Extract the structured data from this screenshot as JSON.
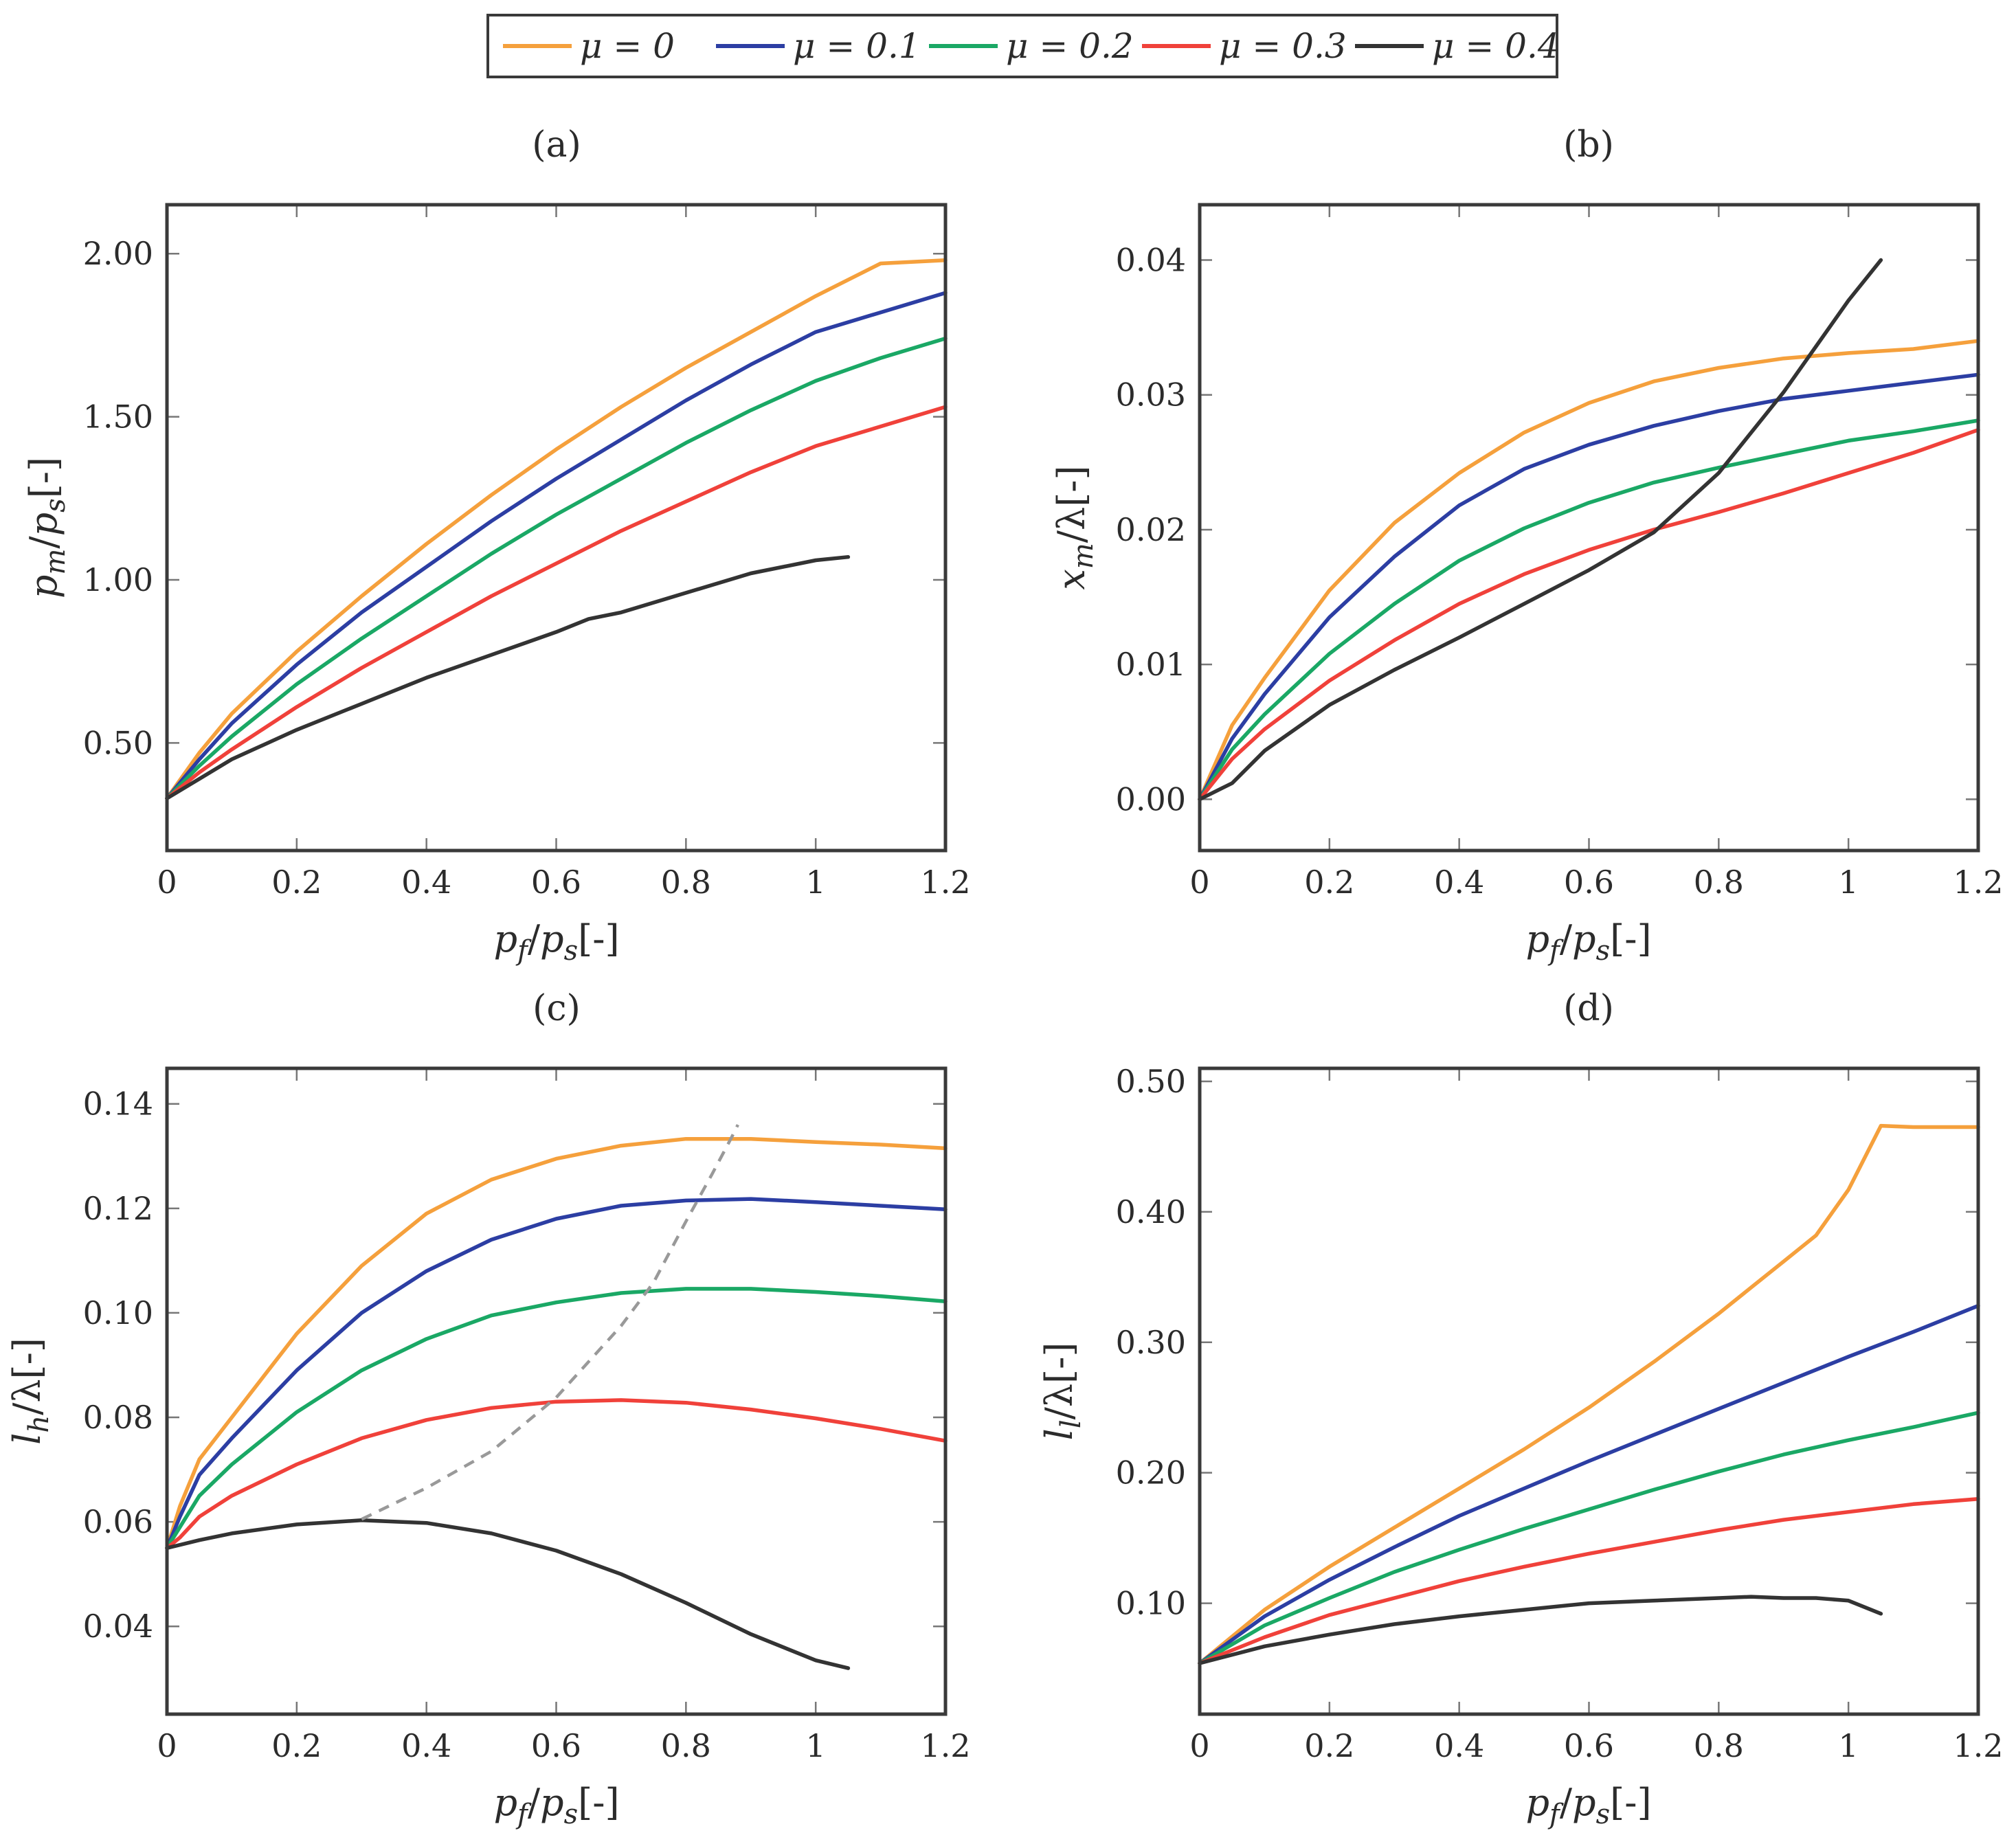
{
  "legend": {
    "entries": [
      {
        "label": "μ = 0",
        "color": "#f5a03c"
      },
      {
        "label": "μ = 0.1",
        "color": "#2c3ea3"
      },
      {
        "label": "μ = 0.2",
        "color": "#1aa865"
      },
      {
        "label": "μ = 0.3",
        "color": "#f0413a"
      },
      {
        "label": "μ = 0.4",
        "color": "#333333"
      }
    ]
  },
  "chart_data": [
    {
      "id": "a",
      "type": "line",
      "title": "(a)",
      "xlabel": "p_f/p_s[-]",
      "ylabel": "p_m/p_s[-]",
      "xlim": [
        0,
        1.2
      ],
      "ylim": [
        0.17,
        2.15
      ],
      "xticks": [
        0,
        0.2,
        0.4,
        0.6,
        0.8,
        1,
        1.2
      ],
      "xtick_labels": [
        "0",
        "0.2",
        "0.4",
        "0.6",
        "0.8",
        "1",
        "1.2"
      ],
      "yticks": [
        0.5,
        1.0,
        1.5,
        2.0
      ],
      "ytick_labels": [
        "0.50",
        "1.00",
        "1.50",
        "2.00"
      ],
      "series": [
        {
          "name": "μ = 0",
          "x": [
            0,
            0.05,
            0.1,
            0.2,
            0.3,
            0.4,
            0.5,
            0.6,
            0.7,
            0.8,
            0.9,
            1.0,
            1.1,
            1.2
          ],
          "y": [
            0.33,
            0.47,
            0.59,
            0.78,
            0.95,
            1.11,
            1.26,
            1.4,
            1.53,
            1.65,
            1.76,
            1.87,
            1.97,
            1.98
          ]
        },
        {
          "name": "μ = 0.1",
          "x": [
            0,
            0.05,
            0.1,
            0.2,
            0.3,
            0.4,
            0.5,
            0.6,
            0.7,
            0.8,
            0.9,
            1.0,
            1.1,
            1.2
          ],
          "y": [
            0.33,
            0.45,
            0.56,
            0.74,
            0.9,
            1.04,
            1.18,
            1.31,
            1.43,
            1.55,
            1.66,
            1.76,
            1.82,
            1.88
          ]
        },
        {
          "name": "μ = 0.2",
          "x": [
            0,
            0.05,
            0.1,
            0.2,
            0.3,
            0.4,
            0.5,
            0.6,
            0.7,
            0.8,
            0.9,
            1.0,
            1.1,
            1.2
          ],
          "y": [
            0.33,
            0.43,
            0.52,
            0.68,
            0.82,
            0.95,
            1.08,
            1.2,
            1.31,
            1.42,
            1.52,
            1.61,
            1.68,
            1.74
          ]
        },
        {
          "name": "μ = 0.3",
          "x": [
            0,
            0.05,
            0.1,
            0.2,
            0.3,
            0.4,
            0.5,
            0.6,
            0.7,
            0.8,
            0.9,
            1.0,
            1.1,
            1.2
          ],
          "y": [
            0.33,
            0.41,
            0.48,
            0.61,
            0.73,
            0.84,
            0.95,
            1.05,
            1.15,
            1.24,
            1.33,
            1.41,
            1.47,
            1.53
          ]
        },
        {
          "name": "μ = 0.4",
          "x": [
            0,
            0.05,
            0.1,
            0.2,
            0.3,
            0.4,
            0.5,
            0.6,
            0.65,
            0.7,
            0.8,
            0.9,
            1.0,
            1.05
          ],
          "y": [
            0.33,
            0.39,
            0.45,
            0.54,
            0.62,
            0.7,
            0.77,
            0.84,
            0.88,
            0.9,
            0.96,
            1.02,
            1.06,
            1.07
          ]
        }
      ]
    },
    {
      "id": "b",
      "type": "line",
      "title": "(b)",
      "xlabel": "p_f/p_s[-]",
      "ylabel": "x_m/λ[-]",
      "xlim": [
        0,
        1.2
      ],
      "ylim": [
        -0.0038,
        0.0441
      ],
      "xticks": [
        0,
        0.2,
        0.4,
        0.6,
        0.8,
        1,
        1.2
      ],
      "xtick_labels": [
        "0",
        "0.2",
        "0.4",
        "0.6",
        "0.8",
        "1",
        "1.2"
      ],
      "yticks": [
        0,
        0.01,
        0.02,
        0.03,
        0.04
      ],
      "ytick_labels": [
        "0.00",
        "0.01",
        "0.02",
        "0.03",
        "0.04"
      ],
      "series": [
        {
          "name": "μ = 0",
          "x": [
            0,
            0.05,
            0.1,
            0.2,
            0.3,
            0.4,
            0.5,
            0.6,
            0.7,
            0.8,
            0.9,
            1.0,
            1.1,
            1.2
          ],
          "y": [
            0,
            0.0055,
            0.009,
            0.0155,
            0.0205,
            0.0242,
            0.0272,
            0.0294,
            0.031,
            0.032,
            0.0327,
            0.0331,
            0.0334,
            0.034
          ]
        },
        {
          "name": "μ = 0.1",
          "x": [
            0,
            0.05,
            0.1,
            0.2,
            0.3,
            0.4,
            0.5,
            0.6,
            0.7,
            0.8,
            0.9,
            1.0,
            1.1,
            1.2
          ],
          "y": [
            0,
            0.0045,
            0.0078,
            0.0135,
            0.018,
            0.0218,
            0.0245,
            0.0263,
            0.0277,
            0.0288,
            0.0297,
            0.0303,
            0.0309,
            0.0315
          ]
        },
        {
          "name": "μ = 0.2",
          "x": [
            0,
            0.05,
            0.1,
            0.2,
            0.3,
            0.4,
            0.5,
            0.6,
            0.7,
            0.8,
            0.9,
            1.0,
            1.1,
            1.2
          ],
          "y": [
            0,
            0.0037,
            0.0063,
            0.0108,
            0.0145,
            0.0177,
            0.0201,
            0.022,
            0.0235,
            0.0246,
            0.0256,
            0.0266,
            0.0273,
            0.0281
          ]
        },
        {
          "name": "μ = 0.3",
          "x": [
            0,
            0.05,
            0.1,
            0.2,
            0.3,
            0.4,
            0.5,
            0.6,
            0.7,
            0.8,
            0.9,
            1.0,
            1.1,
            1.2
          ],
          "y": [
            0,
            0.003,
            0.0052,
            0.0088,
            0.0118,
            0.0145,
            0.0167,
            0.0185,
            0.02,
            0.0213,
            0.0227,
            0.0242,
            0.0257,
            0.0274
          ]
        },
        {
          "name": "μ = 0.4",
          "x": [
            0,
            0.05,
            0.1,
            0.2,
            0.3,
            0.4,
            0.5,
            0.6,
            0.7,
            0.8,
            0.9,
            0.95,
            1.0,
            1.05
          ],
          "y": [
            0,
            0.0012,
            0.0036,
            0.007,
            0.0096,
            0.012,
            0.0145,
            0.017,
            0.0198,
            0.0242,
            0.0302,
            0.0336,
            0.037,
            0.04
          ]
        }
      ]
    },
    {
      "id": "c",
      "type": "line",
      "title": "(c)",
      "xlabel": "p_f/p_s[-]",
      "ylabel": "l_h/λ[-]",
      "xlim": [
        0,
        1.2
      ],
      "ylim": [
        0.0232,
        0.1468
      ],
      "xticks": [
        0,
        0.2,
        0.4,
        0.6,
        0.8,
        1,
        1.2
      ],
      "xtick_labels": [
        "0",
        "0.2",
        "0.4",
        "0.6",
        "0.8",
        "1",
        "1.2"
      ],
      "yticks": [
        0.04,
        0.06,
        0.08,
        0.1,
        0.12,
        0.14
      ],
      "ytick_labels": [
        "0.04",
        "0.06",
        "0.08",
        "0.10",
        "0.12",
        "0.14"
      ],
      "series": [
        {
          "name": "μ = 0",
          "x": [
            0,
            0.02,
            0.05,
            0.1,
            0.2,
            0.3,
            0.4,
            0.5,
            0.6,
            0.7,
            0.8,
            0.9,
            1.0,
            1.1,
            1.2
          ],
          "y": [
            0.055,
            0.063,
            0.072,
            0.08,
            0.096,
            0.109,
            0.119,
            0.1255,
            0.1295,
            0.132,
            0.1333,
            0.1333,
            0.1327,
            0.1322,
            0.1315
          ]
        },
        {
          "name": "μ = 0.1",
          "x": [
            0,
            0.02,
            0.05,
            0.1,
            0.2,
            0.3,
            0.4,
            0.5,
            0.6,
            0.7,
            0.8,
            0.9,
            1.0,
            1.1,
            1.2
          ],
          "y": [
            0.055,
            0.061,
            0.069,
            0.076,
            0.089,
            0.1,
            0.108,
            0.114,
            0.118,
            0.1205,
            0.1215,
            0.1218,
            0.1212,
            0.1205,
            0.1198
          ]
        },
        {
          "name": "μ = 0.2",
          "x": [
            0,
            0.02,
            0.05,
            0.1,
            0.2,
            0.3,
            0.4,
            0.5,
            0.6,
            0.7,
            0.8,
            0.9,
            1.0,
            1.1,
            1.2
          ],
          "y": [
            0.055,
            0.059,
            0.065,
            0.071,
            0.081,
            0.089,
            0.095,
            0.0995,
            0.102,
            0.1038,
            0.1046,
            0.1046,
            0.104,
            0.1032,
            0.1022
          ]
        },
        {
          "name": "μ = 0.3",
          "x": [
            0,
            0.02,
            0.05,
            0.1,
            0.2,
            0.3,
            0.4,
            0.5,
            0.6,
            0.7,
            0.8,
            0.9,
            1.0,
            1.1,
            1.2
          ],
          "y": [
            0.055,
            0.057,
            0.061,
            0.065,
            0.071,
            0.076,
            0.0795,
            0.0818,
            0.083,
            0.0833,
            0.0828,
            0.0815,
            0.0798,
            0.0778,
            0.0755
          ]
        },
        {
          "name": "μ = 0.4",
          "x": [
            0,
            0.05,
            0.1,
            0.2,
            0.3,
            0.4,
            0.5,
            0.6,
            0.7,
            0.8,
            0.9,
            1.0,
            1.05
          ],
          "y": [
            0.055,
            0.0565,
            0.0578,
            0.0595,
            0.0603,
            0.0598,
            0.0578,
            0.0545,
            0.05,
            0.0445,
            0.0385,
            0.0335,
            0.032
          ]
        },
        {
          "name": "boundary",
          "style": "dashed",
          "color": "#999999",
          "x": [
            0.3,
            0.4,
            0.5,
            0.6,
            0.7,
            0.75,
            0.8,
            0.84,
            0.87,
            0.88
          ],
          "y": [
            0.0605,
            0.0665,
            0.0735,
            0.0838,
            0.0975,
            0.1058,
            0.1175,
            0.1265,
            0.1335,
            0.136
          ]
        }
      ]
    },
    {
      "id": "d",
      "type": "line",
      "title": "(d)",
      "xlabel": "p_f/p_s[-]",
      "ylabel": "l_l/λ[-]",
      "xlim": [
        0,
        1.2
      ],
      "ylim": [
        0.015,
        0.51
      ],
      "xticks": [
        0,
        0.2,
        0.4,
        0.6,
        0.8,
        1,
        1.2
      ],
      "xtick_labels": [
        "0",
        "0.2",
        "0.4",
        "0.6",
        "0.8",
        "1",
        "1.2"
      ],
      "yticks": [
        0.1,
        0.2,
        0.3,
        0.4,
        0.5
      ],
      "ytick_labels": [
        "0.10",
        "0.20",
        "0.30",
        "0.40",
        "0.50"
      ],
      "series": [
        {
          "name": "μ = 0",
          "x": [
            0,
            0.1,
            0.2,
            0.3,
            0.4,
            0.5,
            0.6,
            0.7,
            0.8,
            0.85,
            0.9,
            0.95,
            1.0,
            1.05,
            1.1,
            1.2
          ],
          "y": [
            0.054,
            0.095,
            0.128,
            0.158,
            0.188,
            0.218,
            0.25,
            0.285,
            0.322,
            0.342,
            0.362,
            0.382,
            0.417,
            0.466,
            0.465,
            0.465
          ]
        },
        {
          "name": "μ = 0.1",
          "x": [
            0,
            0.1,
            0.2,
            0.3,
            0.4,
            0.5,
            0.6,
            0.7,
            0.8,
            0.9,
            1.0,
            1.1,
            1.2
          ],
          "y": [
            0.054,
            0.09,
            0.118,
            0.143,
            0.167,
            0.188,
            0.209,
            0.229,
            0.249,
            0.269,
            0.289,
            0.308,
            0.328
          ]
        },
        {
          "name": "μ = 0.2",
          "x": [
            0,
            0.1,
            0.2,
            0.3,
            0.4,
            0.5,
            0.6,
            0.7,
            0.8,
            0.9,
            1.0,
            1.1,
            1.2
          ],
          "y": [
            0.054,
            0.083,
            0.104,
            0.124,
            0.141,
            0.157,
            0.172,
            0.187,
            0.201,
            0.214,
            0.225,
            0.235,
            0.246
          ]
        },
        {
          "name": "μ = 0.3",
          "x": [
            0,
            0.1,
            0.2,
            0.3,
            0.4,
            0.5,
            0.6,
            0.7,
            0.8,
            0.9,
            1.0,
            1.1,
            1.2
          ],
          "y": [
            0.054,
            0.074,
            0.091,
            0.104,
            0.117,
            0.128,
            0.138,
            0.147,
            0.156,
            0.164,
            0.17,
            0.176,
            0.18
          ]
        },
        {
          "name": "μ = 0.4",
          "x": [
            0,
            0.1,
            0.2,
            0.3,
            0.4,
            0.5,
            0.6,
            0.7,
            0.8,
            0.85,
            0.9,
            0.95,
            1.0,
            1.05
          ],
          "y": [
            0.054,
            0.067,
            0.076,
            0.084,
            0.09,
            0.095,
            0.1,
            0.102,
            0.104,
            0.105,
            0.104,
            0.104,
            0.102,
            0.092
          ]
        }
      ]
    }
  ]
}
